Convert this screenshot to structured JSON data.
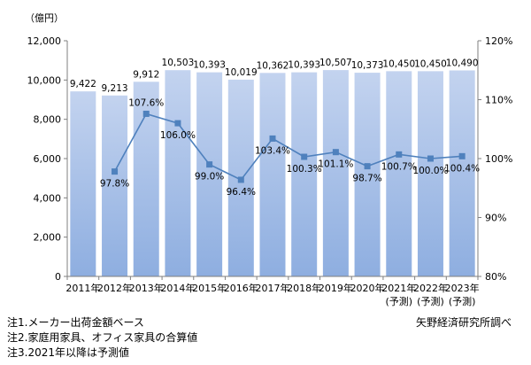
{
  "chart_data": {
    "type": "bar",
    "unit_label": "（億円）",
    "categories": [
      {
        "year": "2011年",
        "sub": ""
      },
      {
        "year": "2012年",
        "sub": ""
      },
      {
        "year": "2013年",
        "sub": ""
      },
      {
        "year": "2014年",
        "sub": ""
      },
      {
        "year": "2015年",
        "sub": ""
      },
      {
        "year": "2016年",
        "sub": ""
      },
      {
        "year": "2017年",
        "sub": ""
      },
      {
        "year": "2018年",
        "sub": ""
      },
      {
        "year": "2019年",
        "sub": ""
      },
      {
        "year": "2020年",
        "sub": ""
      },
      {
        "year": "2021年",
        "sub": "(予測)"
      },
      {
        "year": "2022年",
        "sub": "(予測)"
      },
      {
        "year": "2023年",
        "sub": "(予測)"
      }
    ],
    "bar_values": [
      9422,
      9213,
      9912,
      10503,
      10393,
      10019,
      10362,
      10393,
      10507,
      10373,
      10450,
      10450,
      10490
    ],
    "bar_labels": [
      "9,422",
      "9,213",
      "9,912",
      "10,503",
      "10,393",
      "10,019",
      "10,362",
      "10,393",
      "10,507",
      "10,373",
      "10,450",
      "10,450",
      "10,490"
    ],
    "line_values": [
      null,
      97.8,
      107.6,
      106.0,
      99.0,
      96.4,
      103.4,
      100.3,
      101.1,
      98.7,
      100.7,
      100.0,
      100.4
    ],
    "line_labels": [
      "",
      "97.8%",
      "107.6%",
      "106.0%",
      "99.0%",
      "96.4%",
      "103.4%",
      "100.3%",
      "101.1%",
      "98.7%",
      "100.7%",
      "100.0%",
      "100.4%"
    ],
    "left_axis": {
      "min": 0,
      "max": 12000,
      "ticks": [
        0,
        2000,
        4000,
        6000,
        8000,
        10000,
        12000
      ],
      "tick_labels": [
        "0",
        "2,000",
        "4,000",
        "6,000",
        "8,000",
        "10,000",
        "12,000"
      ]
    },
    "right_axis": {
      "min": 80,
      "max": 120,
      "ticks": [
        80,
        90,
        100,
        110,
        120
      ],
      "tick_labels": [
        "80%",
        "90%",
        "100%",
        "110%",
        "120%"
      ]
    },
    "colors": {
      "bar_top": "#c3d3ef",
      "bar_bottom": "#8eaee0",
      "line": "#4f81bd",
      "axis": "#7f7f7f"
    }
  },
  "notes": [
    "注1.メーカー出荷金額ベース",
    "注2.家庭用家具、オフィス家具の合算値",
    "注3.2021年以降は予測値"
  ],
  "source": "矢野経済研究所調べ"
}
